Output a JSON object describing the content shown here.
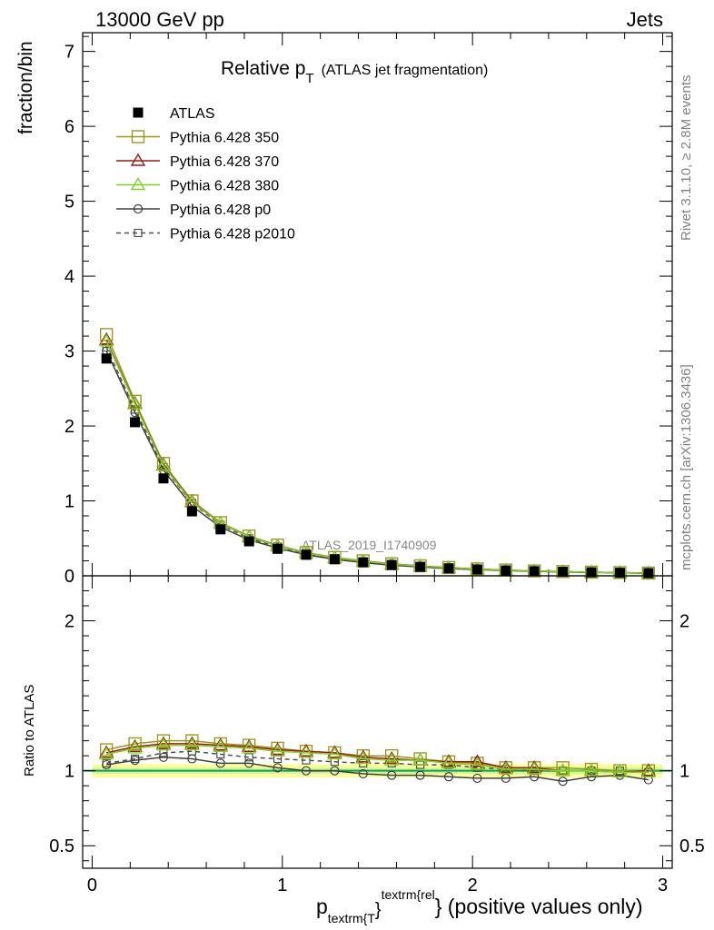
{
  "header": {
    "left": "13000 GeV pp",
    "right": "Jets"
  },
  "title": {
    "main": "Relative p",
    "sub": "T",
    "paren": "(ATLAS jet fragmentation)"
  },
  "side_labels": {
    "top": "Rivet 3.1.10, ≥ 2.8M events",
    "bottom": "mcplots.cern.ch [arXiv:1306.3436]"
  },
  "watermark": "ATLAS_2019_I1740909",
  "xlabel": {
    "p": "p",
    "sub": "textrm{T",
    "sup": "textrm{rel",
    "brace": "}",
    "rest": "} (positive values only)"
  },
  "chart_data": [
    {
      "type": "scatter",
      "panel": "main",
      "ylabel": "fraction/bin",
      "xlim": [
        -0.05,
        3.05
      ],
      "ylim": [
        0,
        7.25
      ],
      "xticks": [
        0,
        1,
        2,
        3
      ],
      "yticks": [
        0,
        1,
        2,
        3,
        4,
        5,
        6,
        7
      ],
      "ytick_labels": [
        "0",
        "1",
        "2",
        "3",
        "4",
        "5",
        "6",
        "7"
      ],
      "x": [
        0.075,
        0.225,
        0.375,
        0.525,
        0.675,
        0.825,
        0.975,
        1.125,
        1.275,
        1.425,
        1.575,
        1.725,
        1.875,
        2.025,
        2.175,
        2.325,
        2.475,
        2.625,
        2.775,
        2.925
      ],
      "series": [
        {
          "name": "ATLAS",
          "color": "#000000",
          "marker": "filled-square",
          "line": "none",
          "values": [
            2.9,
            2.05,
            1.3,
            0.86,
            0.62,
            0.46,
            0.36,
            0.28,
            0.22,
            0.18,
            0.145,
            0.12,
            0.1,
            0.085,
            0.072,
            0.062,
            0.054,
            0.047,
            0.041,
            0.036
          ]
        },
        {
          "name": "Pythia 6.428 350",
          "color": "#9a9a20",
          "marker": "open-square",
          "line": "solid",
          "values": [
            3.22,
            2.33,
            1.5,
            1.0,
            0.71,
            0.53,
            0.41,
            0.31,
            0.245,
            0.2,
            0.16,
            0.133,
            0.11,
            0.092,
            0.077,
            0.065,
            0.057,
            0.049,
            0.043,
            0.037
          ]
        },
        {
          "name": "Pythia 6.428 370",
          "color": "#a01818",
          "marker": "open-triangle",
          "line": "solid",
          "values": [
            3.15,
            2.3,
            1.48,
            0.99,
            0.7,
            0.52,
            0.4,
            0.305,
            0.24,
            0.196,
            0.158,
            0.13,
            0.108,
            0.09,
            0.075,
            0.063,
            0.055,
            0.048,
            0.042,
            0.036
          ]
        },
        {
          "name": "Pythia 6.428 380",
          "color": "#7ed321",
          "marker": "open-triangle",
          "line": "solid",
          "values": [
            3.13,
            2.29,
            1.47,
            0.98,
            0.7,
            0.52,
            0.4,
            0.305,
            0.24,
            0.195,
            0.157,
            0.13,
            0.107,
            0.09,
            0.075,
            0.063,
            0.055,
            0.048,
            0.041,
            0.036
          ]
        },
        {
          "name": "Pythia 6.428 p0",
          "color": "#404040",
          "marker": "open-circle",
          "line": "solid",
          "values": [
            3.0,
            2.18,
            1.41,
            0.93,
            0.65,
            0.48,
            0.37,
            0.28,
            0.22,
            0.176,
            0.141,
            0.117,
            0.096,
            0.081,
            0.069,
            0.059,
            0.05,
            0.045,
            0.04,
            0.034
          ]
        },
        {
          "name": "Pythia 6.428 p2010",
          "color": "#505050",
          "marker": "open-square-small",
          "line": "dashed",
          "values": [
            3.05,
            2.22,
            1.45,
            0.97,
            0.68,
            0.5,
            0.39,
            0.3,
            0.235,
            0.19,
            0.153,
            0.126,
            0.104,
            0.087,
            0.073,
            0.062,
            0.054,
            0.047,
            0.041,
            0.035
          ]
        }
      ]
    },
    {
      "type": "scatter",
      "panel": "ratio",
      "ylabel": "Ratio to ATLAS",
      "xlim": [
        -0.05,
        3.05
      ],
      "ylim": [
        0.35,
        2.3
      ],
      "xticks": [
        0,
        1,
        2,
        3
      ],
      "xtick_labels": [
        "0",
        "1",
        "2",
        "3"
      ],
      "yticks": [
        0.5,
        1,
        2
      ],
      "ytick_labels": [
        "0.5",
        "1",
        "2"
      ],
      "reference": 1.0,
      "x": [
        0.075,
        0.225,
        0.375,
        0.525,
        0.675,
        0.825,
        0.975,
        1.125,
        1.275,
        1.425,
        1.575,
        1.725,
        1.875,
        2.025,
        2.175,
        2.325,
        2.475,
        2.625,
        2.775,
        2.925
      ],
      "series": [
        {
          "name": "Pythia 6.428 350",
          "values": [
            1.14,
            1.18,
            1.2,
            1.2,
            1.18,
            1.17,
            1.15,
            1.13,
            1.12,
            1.1,
            1.1,
            1.08,
            1.06,
            1.05,
            1.02,
            1.02,
            1.02,
            1.01,
            1.0,
            1.0
          ]
        },
        {
          "name": "Pythia 6.428 370",
          "values": [
            1.12,
            1.16,
            1.18,
            1.18,
            1.17,
            1.16,
            1.14,
            1.13,
            1.12,
            1.09,
            1.08,
            1.07,
            1.06,
            1.06,
            1.02,
            1.02,
            1.0,
            1.0,
            0.99,
            1.0
          ]
        },
        {
          "name": "Pythia 6.428 380",
          "values": [
            1.11,
            1.15,
            1.17,
            1.17,
            1.16,
            1.15,
            1.13,
            1.12,
            1.11,
            1.08,
            1.07,
            1.07,
            1.05,
            1.04,
            1.01,
            1.01,
            1.0,
            1.0,
            0.99,
            0.99
          ]
        },
        {
          "name": "Pythia 6.428 p0",
          "values": [
            1.04,
            1.07,
            1.09,
            1.08,
            1.05,
            1.05,
            1.02,
            1.0,
            1.0,
            0.98,
            0.97,
            0.97,
            0.96,
            0.95,
            0.95,
            0.96,
            0.93,
            0.96,
            0.97,
            0.94
          ]
        },
        {
          "name": "Pythia 6.428 p2010",
          "values": [
            1.05,
            1.08,
            1.12,
            1.13,
            1.11,
            1.09,
            1.08,
            1.07,
            1.06,
            1.05,
            1.05,
            1.04,
            1.04,
            1.02,
            1.01,
            1.0,
            1.0,
            1.0,
            1.0,
            0.99
          ]
        }
      ]
    }
  ]
}
